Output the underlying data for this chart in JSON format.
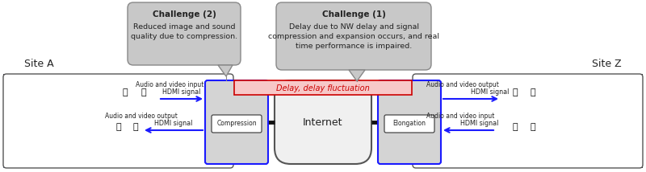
{
  "fig_width": 8.0,
  "fig_height": 2.14,
  "dpi": 100,
  "bg_color": "#ffffff",
  "site_a_label": "Site A",
  "site_z_label": "Site Z",
  "challenge1_title": "Challenge (1)",
  "challenge1_body": "Delay due to NW delay and signal\ncompression and expansion occurs, and real\ntime performance is impaired.",
  "challenge2_title": "Challenge (2)",
  "challenge2_body": "Reduced image and sound\nquality due to compression.",
  "delay_label": "Delay, delay fluctuation",
  "internet_label": "Internet",
  "compression_label": "Compression",
  "elongation_label": "Elongation",
  "hdmi_signal": "HDMI signal",
  "audio_video_input": "Audio and video input",
  "audio_video_output": "Audio and video output",
  "arrow_red": "#cc0000",
  "arrow_blue": "#1a1aff",
  "delay_bg": "#f7c8c8",
  "callout_bg": "#c8c8c8",
  "callout_border": "#888888",
  "site_box_border": "#555555",
  "comp_box_bg": "#d4d4d4",
  "comp_box_border": "#1a1aff",
  "internet_box_bg": "#f0f0f0",
  "internet_box_border": "#555555",
  "inner_box_bg": "#ffffff",
  "inner_box_border": "#333333",
  "photo_lt": "#2a2a3a",
  "photo_lb": "#5a7090",
  "photo_rt": "#1a1a28",
  "photo_rb": "#181820"
}
